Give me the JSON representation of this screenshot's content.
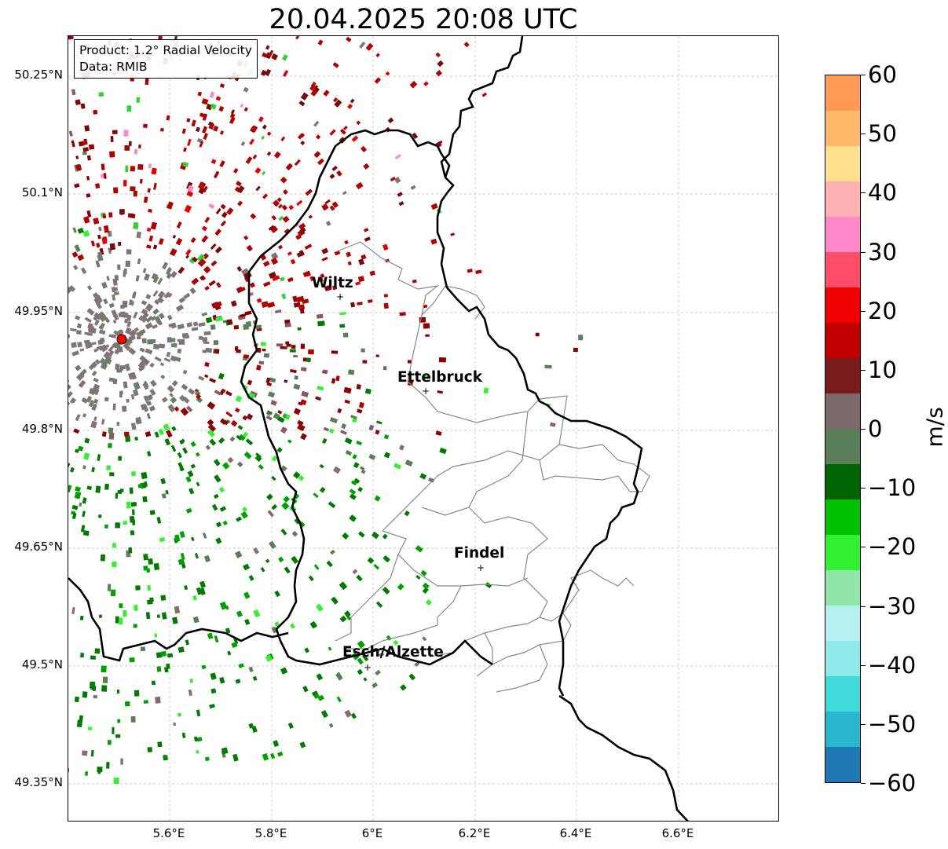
{
  "title": "20.04.2025 20:08 UTC",
  "info_box": {
    "line1": "Product: 1.2° Radial Velocity",
    "line2": "Data: RMIB"
  },
  "map": {
    "y_ticks": [
      "50.25°N",
      "50.1°N",
      "49.95°N",
      "49.8°N",
      "49.65°N",
      "49.5°N",
      "49.35°N"
    ],
    "x_ticks": [
      "5.6°E",
      "5.8°E",
      "6°E",
      "6.2°E",
      "6.4°E",
      "6.6°E"
    ],
    "cities": [
      {
        "name": "Wiltz"
      },
      {
        "name": "Ettelbruck"
      },
      {
        "name": "Findel"
      },
      {
        "name": "Esch/Alzette"
      }
    ],
    "radar_site_color": "#ff0000"
  },
  "colorbar": {
    "unit": "m/s",
    "ticks": [
      "60",
      "50",
      "40",
      "30",
      "20",
      "10",
      "0",
      "−10",
      "−20",
      "−30",
      "−40",
      "−50",
      "−60"
    ],
    "range": [
      -60,
      60
    ],
    "colors": [
      "#1f77b4",
      "#29b6cf",
      "#3fdbdb",
      "#8fe9ea",
      "#b7f0f0",
      "#8fe6a8",
      "#33f033",
      "#00c000",
      "#006400",
      "#5a7e5a",
      "#7a6a6a",
      "#7a1a1a",
      "#c00000",
      "#f00000",
      "#ff4d6a",
      "#ff88c8",
      "#ffb0b0",
      "#ffe08f",
      "#ffb86a",
      "#ff9a55"
    ]
  }
}
